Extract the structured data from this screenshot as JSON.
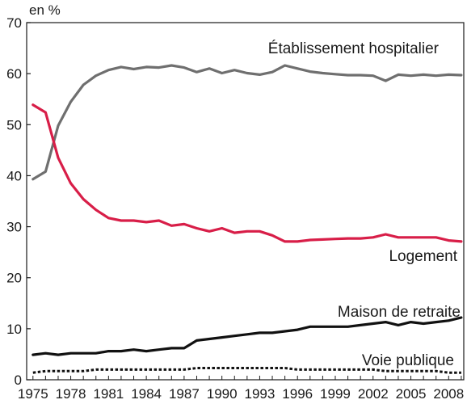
{
  "chart_data": {
    "type": "line",
    "unit_label": "en %",
    "ylim": [
      0,
      70
    ],
    "y_ticks": [
      0,
      10,
      20,
      30,
      40,
      50,
      60,
      70
    ],
    "x_range": [
      1974.5,
      2009.2
    ],
    "x_tick_labels": [
      "1975",
      "1978",
      "1981",
      "1984",
      "1987",
      "1990",
      "1993",
      "1996",
      "1999",
      "2002",
      "2005",
      "2008"
    ],
    "grid": false,
    "legend": "inline labels",
    "x": [
      1975,
      1976,
      1977,
      1978,
      1979,
      1980,
      1981,
      1982,
      1983,
      1984,
      1985,
      1986,
      1987,
      1988,
      1989,
      1990,
      1991,
      1992,
      1993,
      1994,
      1995,
      1996,
      1997,
      1998,
      1999,
      2000,
      2001,
      2002,
      2003,
      2004,
      2005,
      2006,
      2007,
      2008,
      2009
    ],
    "series": [
      {
        "name": "Établissement hospitalier",
        "color": "#6f6f6f",
        "style": "solid",
        "label_position": "above-right",
        "values": [
          39.3,
          40.8,
          49.8,
          54.5,
          57.8,
          59.6,
          60.7,
          61.3,
          60.9,
          61.3,
          61.2,
          61.6,
          61.2,
          60.3,
          61.0,
          60.1,
          60.7,
          60.1,
          59.8,
          60.3,
          61.6,
          61.0,
          60.4,
          60.1,
          59.9,
          59.7,
          59.7,
          59.6,
          58.6,
          59.8,
          59.6,
          59.8,
          59.6,
          59.8,
          59.7
        ]
      },
      {
        "name": "Logement",
        "color": "#d81e48",
        "style": "solid",
        "label_position": "below-right",
        "values": [
          53.9,
          52.4,
          43.5,
          38.5,
          35.4,
          33.3,
          31.7,
          31.2,
          31.2,
          30.9,
          31.2,
          30.2,
          30.5,
          29.7,
          29.1,
          29.7,
          28.8,
          29.1,
          29.1,
          28.3,
          27.1,
          27.1,
          27.4,
          27.5,
          27.6,
          27.7,
          27.7,
          27.9,
          28.5,
          27.9,
          27.9,
          27.9,
          27.9,
          27.3,
          27.1
        ]
      },
      {
        "name": "Maison de retraite",
        "color": "#111111",
        "style": "solid",
        "label_position": "above-right",
        "values": [
          4.9,
          5.2,
          4.9,
          5.2,
          5.2,
          5.2,
          5.6,
          5.6,
          5.9,
          5.6,
          5.9,
          6.2,
          6.2,
          7.7,
          8.0,
          8.3,
          8.6,
          8.9,
          9.2,
          9.2,
          9.5,
          9.8,
          10.4,
          10.4,
          10.4,
          10.4,
          10.7,
          11.0,
          11.3,
          10.7,
          11.3,
          11.0,
          11.3,
          11.6,
          12.2
        ]
      },
      {
        "name": "Voie publique",
        "color": "#111111",
        "style": "dotted",
        "label_position": "above-right",
        "values": [
          1.4,
          1.7,
          1.7,
          1.7,
          1.7,
          2.0,
          2.0,
          2.0,
          2.0,
          2.0,
          2.0,
          2.0,
          2.0,
          2.3,
          2.3,
          2.3,
          2.3,
          2.3,
          2.3,
          2.3,
          2.3,
          2.0,
          2.0,
          2.0,
          2.0,
          2.0,
          2.0,
          2.0,
          1.7,
          1.7,
          1.7,
          1.7,
          1.7,
          1.4,
          1.4
        ]
      }
    ]
  }
}
